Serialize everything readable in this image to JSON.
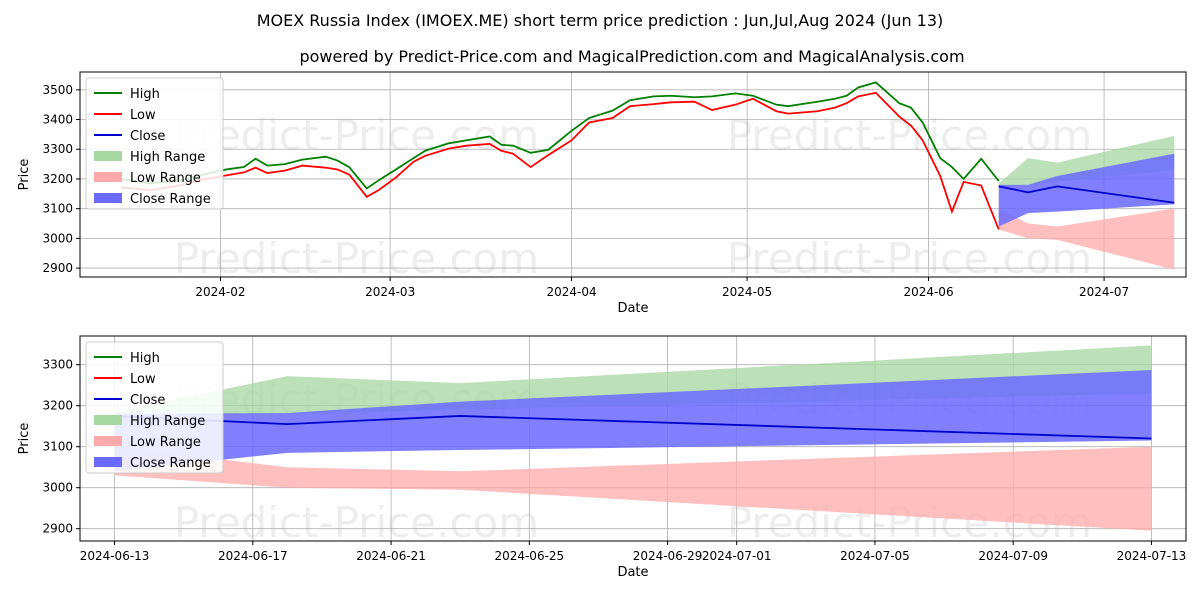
{
  "title": "MOEX Russia Index (IMOEX.ME) short term price prediction : Jun,Jul,Aug 2024 (Jun 13)",
  "subtitle": "powered by Predict-Price.com and MagicalPrediction.com and MagicalAnalysis.com",
  "watermark": "Predict-Price.com",
  "colors": {
    "high": "#008000",
    "low": "#ff0000",
    "close": "#0000cc",
    "high_range": "#a6d7a1",
    "low_range": "#ffaaaa",
    "close_range": "#6a6aff"
  },
  "legend": {
    "high": "High",
    "low": "Low",
    "close": "Close",
    "high_range": "High Range",
    "low_range": "Low Range",
    "close_range": "Close Range"
  },
  "chart_data": [
    {
      "type": "line",
      "xlabel": "Date",
      "ylabel": "Price",
      "legend_position": "upper-left",
      "grid": true,
      "xlim": [
        "2024-01-08",
        "2024-07-15"
      ],
      "ylim": [
        2870,
        3560
      ],
      "x_ticks": [
        "2024-02",
        "2024-03",
        "2024-04",
        "2024-05",
        "2024-06",
        "2024-07"
      ],
      "x_tick_dates": [
        "2024-02-01",
        "2024-03-01",
        "2024-04-01",
        "2024-05-01",
        "2024-06-01",
        "2024-07-01"
      ],
      "y_ticks": [
        2900,
        3000,
        3100,
        3200,
        3300,
        3400,
        3500
      ],
      "history": {
        "dates": [
          "2024-01-15",
          "2024-01-20",
          "2024-01-25",
          "2024-01-29",
          "2024-02-02",
          "2024-02-05",
          "2024-02-07",
          "2024-02-09",
          "2024-02-12",
          "2024-02-15",
          "2024-02-19",
          "2024-02-21",
          "2024-02-23",
          "2024-02-26",
          "2024-02-28",
          "2024-03-02",
          "2024-03-05",
          "2024-03-07",
          "2024-03-11",
          "2024-03-14",
          "2024-03-18",
          "2024-03-20",
          "2024-03-22",
          "2024-03-25",
          "2024-03-28",
          "2024-04-01",
          "2024-04-04",
          "2024-04-08",
          "2024-04-11",
          "2024-04-15",
          "2024-04-18",
          "2024-04-22",
          "2024-04-25",
          "2024-04-29",
          "2024-05-02",
          "2024-05-06",
          "2024-05-08",
          "2024-05-13",
          "2024-05-16",
          "2024-05-18",
          "2024-05-20",
          "2024-05-23",
          "2024-05-27",
          "2024-05-29",
          "2024-05-31",
          "2024-06-03",
          "2024-06-05",
          "2024-06-07",
          "2024-06-10",
          "2024-06-13"
        ],
        "high": [
          3200,
          3185,
          3195,
          3215,
          3232,
          3240,
          3268,
          3245,
          3250,
          3265,
          3275,
          3262,
          3240,
          3168,
          3195,
          3232,
          3270,
          3295,
          3320,
          3330,
          3343,
          3315,
          3312,
          3288,
          3298,
          3362,
          3405,
          3430,
          3465,
          3478,
          3480,
          3475,
          3478,
          3488,
          3480,
          3450,
          3445,
          3460,
          3470,
          3480,
          3508,
          3525,
          3455,
          3440,
          3390,
          3270,
          3240,
          3200,
          3268,
          3193
        ],
        "low": [
          3172,
          3162,
          3178,
          3198,
          3212,
          3222,
          3238,
          3220,
          3228,
          3245,
          3238,
          3232,
          3215,
          3140,
          3162,
          3205,
          3258,
          3278,
          3302,
          3312,
          3318,
          3295,
          3285,
          3240,
          3280,
          3330,
          3390,
          3405,
          3445,
          3452,
          3458,
          3460,
          3432,
          3450,
          3470,
          3428,
          3420,
          3428,
          3440,
          3455,
          3478,
          3490,
          3410,
          3380,
          3330,
          3210,
          3090,
          3190,
          3178,
          3030
        ]
      },
      "forecast_summary": {
        "dates": [
          "2024-06-13",
          "2024-06-18",
          "2024-06-23",
          "2024-07-13"
        ],
        "close": [
          3175,
          3155,
          3175,
          3120
        ],
        "high_range_upper": [
          3185,
          3270,
          3255,
          3345
        ],
        "high_range_lower": [
          3170,
          3180,
          3190,
          3230
        ],
        "low_range_upper": [
          3100,
          3050,
          3040,
          3100
        ],
        "low_range_lower": [
          3030,
          3000,
          2995,
          2895
        ],
        "close_range_upper": [
          3180,
          3180,
          3210,
          3285
        ],
        "close_range_lower": [
          3040,
          3085,
          3090,
          3115
        ]
      }
    },
    {
      "type": "line",
      "xlabel": "Date",
      "ylabel": "Price",
      "legend_position": "upper-left",
      "grid": true,
      "xlim": [
        "2024-06-12",
        "2024-07-14"
      ],
      "ylim": [
        2870,
        3370
      ],
      "x_ticks": [
        "2024-06-13",
        "2024-06-17",
        "2024-06-21",
        "2024-06-25",
        "2024-06-29",
        "2024-07-01",
        "2024-07-05",
        "2024-07-09",
        "2024-07-13"
      ],
      "y_ticks": [
        2900,
        3000,
        3100,
        3200,
        3300
      ],
      "forecast": {
        "dates": [
          "2024-06-13",
          "2024-06-18",
          "2024-06-23",
          "2024-07-13"
        ],
        "close": [
          3175,
          3155,
          3175,
          3120
        ],
        "high_range_upper": [
          3185,
          3272,
          3255,
          3347
        ],
        "high_range_lower": [
          3170,
          3180,
          3190,
          3230
        ],
        "low_range_upper": [
          3100,
          3050,
          3040,
          3100
        ],
        "low_range_lower": [
          3030,
          3000,
          2995,
          2895
        ],
        "close_range_upper": [
          3180,
          3182,
          3210,
          3287
        ],
        "close_range_lower": [
          3040,
          3085,
          3092,
          3115
        ]
      }
    }
  ]
}
